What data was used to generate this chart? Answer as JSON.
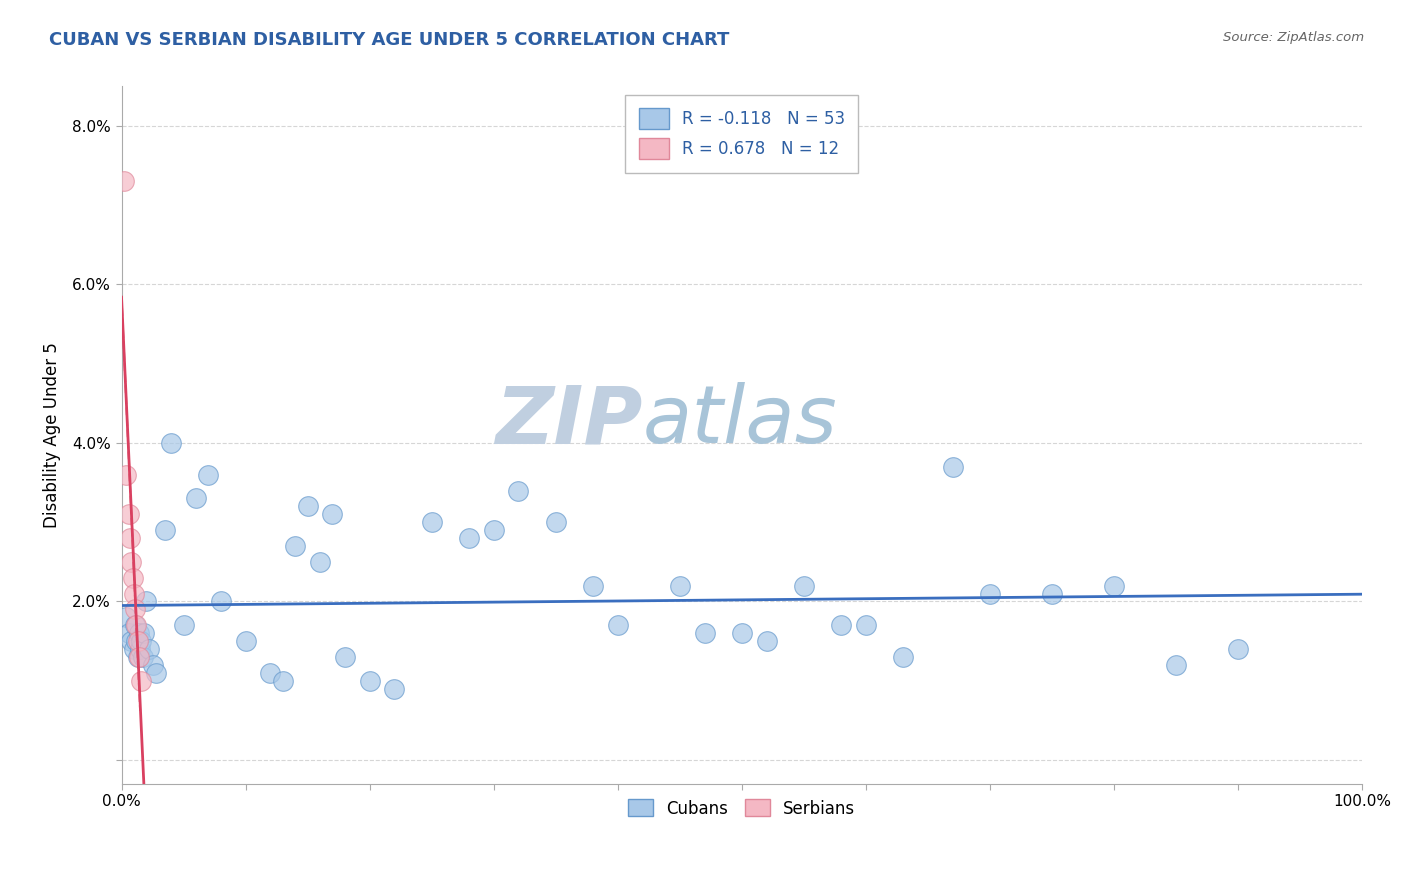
{
  "title": "CUBAN VS SERBIAN DISABILITY AGE UNDER 5 CORRELATION CHART",
  "source": "Source: ZipAtlas.com",
  "ylabel": "Disability Age Under 5",
  "watermark_zip": "ZIP",
  "watermark_atlas": "atlas",
  "xlim": [
    0,
    100
  ],
  "ylim": [
    -0.3,
    8.5
  ],
  "cuban_color": "#a8c8e8",
  "cuban_edge": "#6699cc",
  "serbian_color": "#f4b8c4",
  "serbian_edge": "#e0889a",
  "trend_cuban_color": "#3a6ebf",
  "trend_serbian_color": "#d94060",
  "R_cuban": -0.118,
  "N_cuban": 53,
  "R_serbian": 0.678,
  "N_serbian": 12,
  "legend_cuban_label": "R = -0.118   N = 53",
  "legend_serbian_label": "R = 0.678   N = 12",
  "cuban_x": [
    0.4,
    0.6,
    0.8,
    1.0,
    1.1,
    1.2,
    1.3,
    1.4,
    1.5,
    1.6,
    1.7,
    1.8,
    2.0,
    2.2,
    2.5,
    2.8,
    3.5,
    4.0,
    5.0,
    6.0,
    7.0,
    8.0,
    10.0,
    12.0,
    13.0,
    14.0,
    15.0,
    16.0,
    17.0,
    18.0,
    20.0,
    22.0,
    25.0,
    28.0,
    30.0,
    32.0,
    35.0,
    38.0,
    40.0,
    45.0,
    47.0,
    50.0,
    52.0,
    55.0,
    58.0,
    60.0,
    63.0,
    67.0,
    70.0,
    75.0,
    80.0,
    85.0,
    90.0
  ],
  "cuban_y": [
    1.8,
    1.6,
    1.5,
    1.4,
    1.7,
    1.5,
    1.3,
    1.6,
    1.4,
    1.5,
    1.3,
    1.6,
    2.0,
    1.4,
    1.2,
    1.1,
    2.9,
    4.0,
    1.7,
    3.3,
    3.6,
    2.0,
    1.5,
    1.1,
    1.0,
    2.7,
    3.2,
    2.5,
    3.1,
    1.3,
    1.0,
    0.9,
    3.0,
    2.8,
    2.9,
    3.4,
    3.0,
    2.2,
    1.7,
    2.2,
    1.6,
    1.6,
    1.5,
    2.2,
    1.7,
    1.7,
    1.3,
    3.7,
    2.1,
    2.1,
    2.2,
    1.2,
    1.4
  ],
  "serbian_x": [
    0.2,
    0.4,
    0.6,
    0.7,
    0.8,
    0.9,
    1.0,
    1.1,
    1.2,
    1.3,
    1.4,
    1.6
  ],
  "serbian_y": [
    7.3,
    3.6,
    3.1,
    2.8,
    2.5,
    2.3,
    2.1,
    1.9,
    1.7,
    1.5,
    1.3,
    1.0
  ],
  "title_color": "#2e5fa3",
  "source_color": "#666666",
  "watermark_color_zip": "#c0cfe0",
  "watermark_color_atlas": "#a8c4d8",
  "grid_color": "#cccccc",
  "background_color": "#ffffff"
}
